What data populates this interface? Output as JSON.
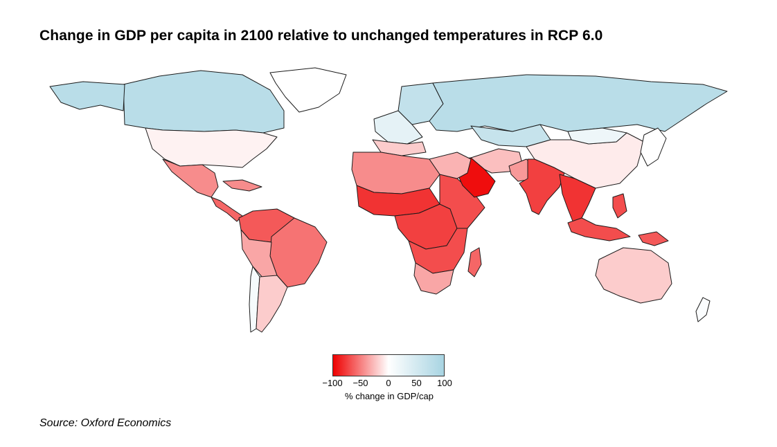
{
  "title": "Change in GDP per capita in 2100 relative to unchanged temperatures in RCP 6.0",
  "source": "Source: Oxford Economics",
  "legend": {
    "caption": "% change in GDP/cap",
    "ticks": [
      "−100",
      "−50",
      "0",
      "50",
      "100"
    ],
    "tick_values": [
      -100,
      -50,
      0,
      50,
      100
    ],
    "colors": {
      "min": "#ee0000",
      "mid": "#ffffff",
      "max": "#a8d4e2"
    }
  },
  "map_data": {
    "type": "choropleth",
    "variable": "% change in GDP/cap",
    "range": [
      -100,
      100
    ],
    "regions": [
      {
        "name": "Canada",
        "value": 80
      },
      {
        "name": "Greenland",
        "value": 0
      },
      {
        "name": "Alaska",
        "value": 80
      },
      {
        "name": "United States",
        "value": -5
      },
      {
        "name": "Mexico",
        "value": -45
      },
      {
        "name": "Central America",
        "value": -60
      },
      {
        "name": "Caribbean",
        "value": -45
      },
      {
        "name": "Colombia / Venezuela",
        "value": -65
      },
      {
        "name": "Brazil",
        "value": -55
      },
      {
        "name": "Peru / Bolivia",
        "value": -35
      },
      {
        "name": "Chile",
        "value": 10
      },
      {
        "name": "Argentina",
        "value": -20
      },
      {
        "name": "Northern Europe",
        "value": 70
      },
      {
        "name": "Western Europe",
        "value": 30
      },
      {
        "name": "Southern Europe",
        "value": -20
      },
      {
        "name": "Russia",
        "value": 80
      },
      {
        "name": "Kazakhstan / Central Asia",
        "value": 65
      },
      {
        "name": "North Africa",
        "value": -45
      },
      {
        "name": "Sahel & West Africa",
        "value": -80
      },
      {
        "name": "Central Africa",
        "value": -75
      },
      {
        "name": "East Africa",
        "value": -70
      },
      {
        "name": "Southern Africa",
        "value": -70
      },
      {
        "name": "South Africa",
        "value": -35
      },
      {
        "name": "Madagascar",
        "value": -60
      },
      {
        "name": "Saudi Arabia",
        "value": -95
      },
      {
        "name": "Middle East",
        "value": -30
      },
      {
        "name": "Iran / Afghanistan",
        "value": -25
      },
      {
        "name": "Pakistan",
        "value": -40
      },
      {
        "name": "India",
        "value": -75
      },
      {
        "name": "China",
        "value": -8
      },
      {
        "name": "Mongolia",
        "value": 20
      },
      {
        "name": "Southeast Asia",
        "value": -80
      },
      {
        "name": "Indonesia / Philippines",
        "value": -70
      },
      {
        "name": "Papua New Guinea",
        "value": -65
      },
      {
        "name": "Australia",
        "value": -20
      },
      {
        "name": "New Zealand",
        "value": 5
      },
      {
        "name": "Japan / Korea",
        "value": 0
      }
    ]
  }
}
